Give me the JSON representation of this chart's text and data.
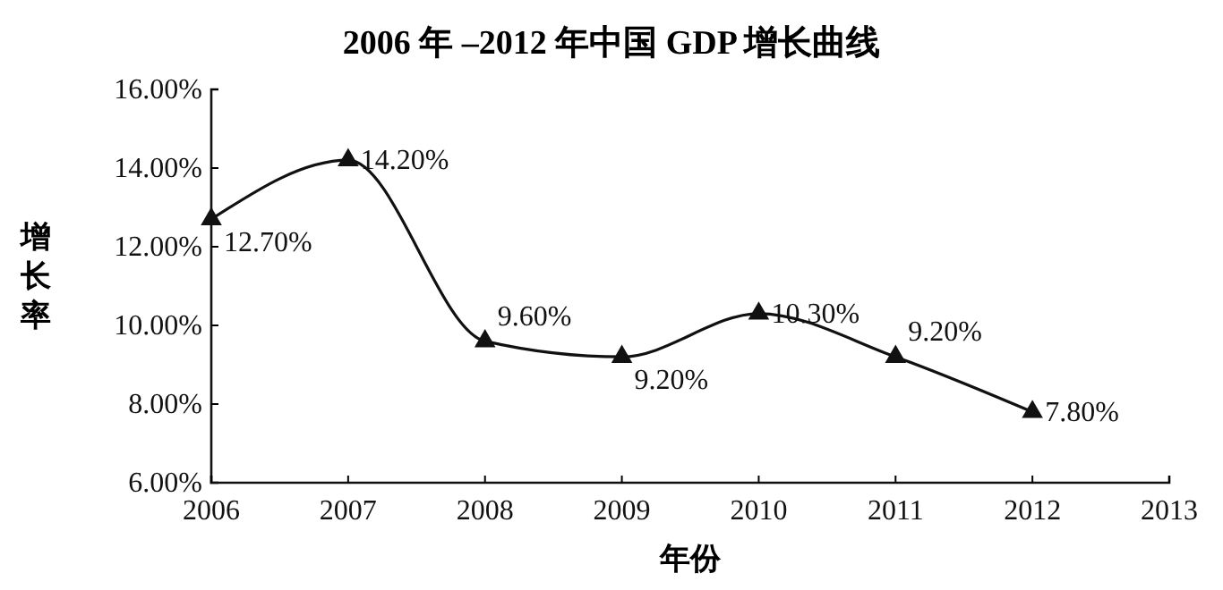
{
  "chart_data": {
    "type": "line",
    "title": "2006 年 –2012 年中国 GDP 增长曲线",
    "xlabel": "年份",
    "ylabel": "增长率",
    "x": [
      2006,
      2007,
      2008,
      2009,
      2010,
      2011,
      2012
    ],
    "series": [
      {
        "color": "#111111",
        "values": [
          12.7,
          14.2,
          9.6,
          9.2,
          10.3,
          9.2,
          7.8
        ],
        "value_labels": [
          "12.70%",
          "14.20%",
          "9.60%",
          "9.20%",
          "10.30%",
          "9.20%",
          "7.80%"
        ]
      }
    ],
    "xlim": [
      2006,
      2013
    ],
    "xticks": [
      2006,
      2007,
      2008,
      2009,
      2010,
      2011,
      2012,
      2013
    ],
    "ylim": [
      6,
      16
    ],
    "yticks": [
      {
        "value": 6,
        "label": "6.00%"
      },
      {
        "value": 8,
        "label": "8.00%"
      },
      {
        "value": 10,
        "label": "10.00%"
      },
      {
        "value": 12,
        "label": "12.00%"
      },
      {
        "value": 14,
        "label": "14.00%"
      },
      {
        "value": 16,
        "label": "16.00%"
      }
    ],
    "marker": "triangle",
    "line_style": "solid",
    "grid": false
  }
}
